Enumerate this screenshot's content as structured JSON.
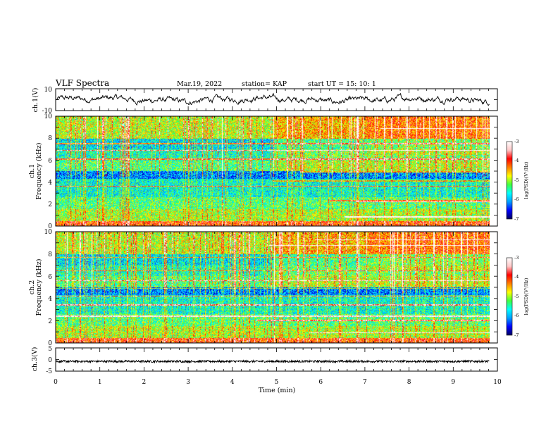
{
  "header": {
    "title": "VLF Spectra",
    "date": "Mar.19, 2022",
    "station": "station= KAP",
    "start_ut": "start  UT =   15: 10: 1"
  },
  "chart_data": [
    {
      "type": "line",
      "panel": "ch1-waveform",
      "ylabel": "ch.1(V)",
      "ylim": [
        -10,
        10
      ],
      "ytick_labels": [
        "10",
        "-10"
      ],
      "xlim": [
        0,
        10
      ],
      "trace_color": "#000000"
    },
    {
      "type": "heatmap",
      "panel": "ch1-spectrogram",
      "ylabel": "ch.1\nFrequency (kHz)",
      "ylabel_lines": [
        "ch.1",
        "Frequency (kHz)"
      ],
      "ylim": [
        0,
        10
      ],
      "ytick_labels": [
        "0",
        "2",
        "4",
        "6",
        "8",
        "10"
      ],
      "xlim": [
        0,
        10
      ],
      "data_end_min": 9.82,
      "colorbar": {
        "label": "log(PSD)(V²/Hz)",
        "range": [
          -7,
          -3
        ],
        "tick_labels": [
          "-3",
          "-4",
          "-5",
          "-6",
          "-7"
        ],
        "colors": [
          "#000060",
          "#0000ff",
          "#00a0ff",
          "#00ffff",
          "#40ff40",
          "#ffff00",
          "#ff8000",
          "#ff0000",
          "#ffc8c8",
          "#ffffff"
        ]
      }
    },
    {
      "type": "heatmap",
      "panel": "ch2-spectrogram",
      "ylabel": "ch.2\nFrequency (kHz)",
      "ylabel_lines": [
        "ch.2",
        "Frequency (kHz)"
      ],
      "ylim": [
        0,
        10
      ],
      "ytick_labels": [
        "0",
        "2",
        "4",
        "6",
        "8",
        "10"
      ],
      "xlim": [
        0,
        10
      ],
      "data_end_min": 9.82,
      "colorbar": {
        "label": "log(PSD)(V²/Hz)",
        "range": [
          -7,
          -3
        ],
        "tick_labels": [
          "-3",
          "-4",
          "-5",
          "-6",
          "-7"
        ],
        "colors": [
          "#000060",
          "#0000ff",
          "#00a0ff",
          "#00ffff",
          "#40ff40",
          "#ffff00",
          "#ff8000",
          "#ff0000",
          "#ffc8c8",
          "#ffffff"
        ]
      }
    },
    {
      "type": "line",
      "panel": "ch3-waveform",
      "ylabel": "ch.3(V)",
      "ylim": [
        -5,
        5
      ],
      "ytick_labels": [
        "5",
        "0",
        "-5"
      ],
      "xlim": [
        0,
        10
      ],
      "xlabel": "Time (min)",
      "xtick_labels": [
        "0",
        "1",
        "2",
        "3",
        "4",
        "5",
        "6",
        "7",
        "8",
        "9",
        "10"
      ],
      "trace_color": "#000000",
      "band_level_v": -0.8
    }
  ]
}
